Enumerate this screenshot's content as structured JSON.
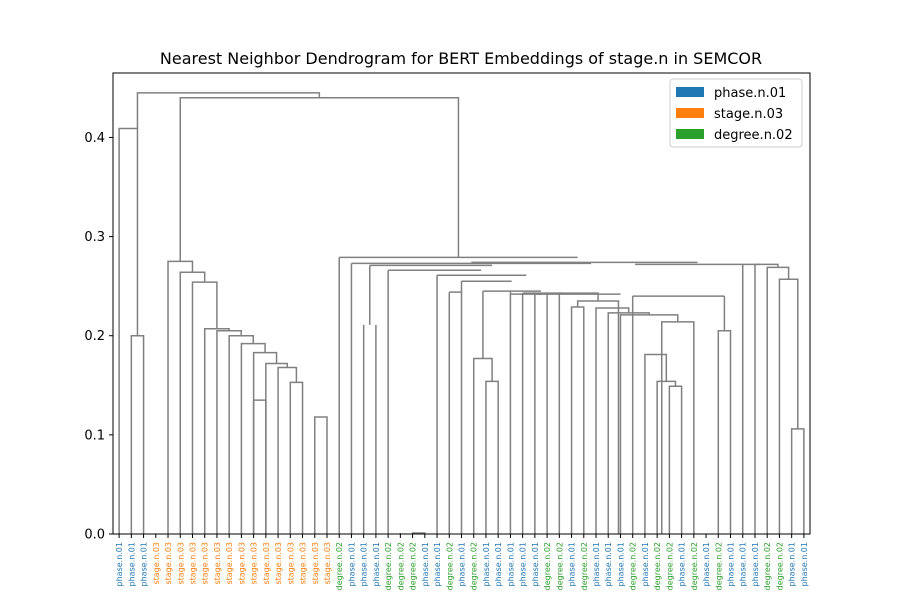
{
  "chart_data": {
    "type": "dendrogram",
    "title": "Nearest Neighbor Dendrogram for BERT Embeddings of stage.n in SEMCOR",
    "ylim": [
      0,
      0.465
    ],
    "yticks": [
      "0.0",
      "0.1",
      "0.2",
      "0.3",
      "0.4"
    ],
    "ytick_values": [
      0.0,
      0.1,
      0.2,
      0.3,
      0.4
    ],
    "legend": {
      "placement": "top-right",
      "entries": [
        {
          "label": "phase.n.01",
          "color": "#1f77b4"
        },
        {
          "label": "stage.n.03",
          "color": "#ff7f0e"
        },
        {
          "label": "degree.n.02",
          "color": "#2ca02c"
        }
      ]
    },
    "leaves": [
      "phase.n.01",
      "phase.n.01",
      "phase.n.01",
      "stage.n.03",
      "stage.n.03",
      "stage.n.03",
      "stage.n.03",
      "stage.n.03",
      "stage.n.03",
      "stage.n.03",
      "stage.n.03",
      "stage.n.03",
      "stage.n.03",
      "stage.n.03",
      "stage.n.03",
      "stage.n.03",
      "stage.n.03",
      "stage.n.03",
      "degree.n.02",
      "phase.n.01",
      "phase.n.01",
      "phase.n.01",
      "degree.n.02",
      "degree.n.02",
      "degree.n.02",
      "phase.n.01",
      "phase.n.01",
      "degree.n.02",
      "phase.n.01",
      "degree.n.02",
      "phase.n.01",
      "phase.n.01",
      "phase.n.01",
      "phase.n.01",
      "phase.n.01",
      "degree.n.02",
      "degree.n.02",
      "phase.n.01",
      "degree.n.02",
      "phase.n.01",
      "phase.n.01",
      "phase.n.01",
      "degree.n.02",
      "phase.n.01",
      "degree.n.02",
      "degree.n.02",
      "phase.n.01",
      "degree.n.02",
      "phase.n.01",
      "degree.n.02",
      "phase.n.01",
      "phase.n.01",
      "phase.n.01",
      "degree.n.02",
      "degree.n.02",
      "phase.n.01",
      "phase.n.01"
    ],
    "link_color": "#808080",
    "links": [
      [
        1,
        2,
        0.2
      ],
      [
        0,
        1.5,
        0.409
      ],
      [
        14,
        15,
        0.153
      ],
      [
        13,
        14.5,
        0.168
      ],
      [
        12,
        13.75,
        0.172
      ],
      [
        11,
        12.875,
        0.183
      ],
      [
        10,
        11.9375,
        0.192
      ],
      [
        9,
        10.96875,
        0.2
      ],
      [
        8,
        9.984375,
        0.205
      ],
      [
        7,
        8.9921875,
        0.207
      ],
      [
        6,
        7.99609375,
        0.254
      ],
      [
        5,
        6.998046875,
        0.264
      ],
      [
        4,
        5.9990234375,
        0.275
      ],
      [
        11,
        12,
        0.135
      ],
      [
        16,
        17,
        0.118
      ],
      [
        24,
        25,
        0.001
      ],
      [
        30,
        31,
        0.154
      ],
      [
        29,
        30.5,
        0.177
      ],
      [
        45,
        46,
        0.149
      ],
      [
        44,
        45.5,
        0.154
      ],
      [
        43,
        44.75,
        0.181
      ],
      [
        44.375,
        47,
        0.214
      ],
      [
        41,
        45.6875,
        0.221
      ],
      [
        40,
        43.34375,
        0.223
      ],
      [
        39,
        41.671875,
        0.228
      ],
      [
        37,
        38,
        0.229
      ],
      [
        37.5,
        40.8359375,
        0.235
      ],
      [
        36,
        39.16796875,
        0.243
      ],
      [
        55,
        56,
        0.106
      ],
      [
        54,
        55.5,
        0.257
      ],
      [
        53,
        54.75,
        0.269
      ],
      [
        52,
        53.875,
        0.272
      ],
      [
        49,
        50,
        0.205
      ]
    ]
  }
}
